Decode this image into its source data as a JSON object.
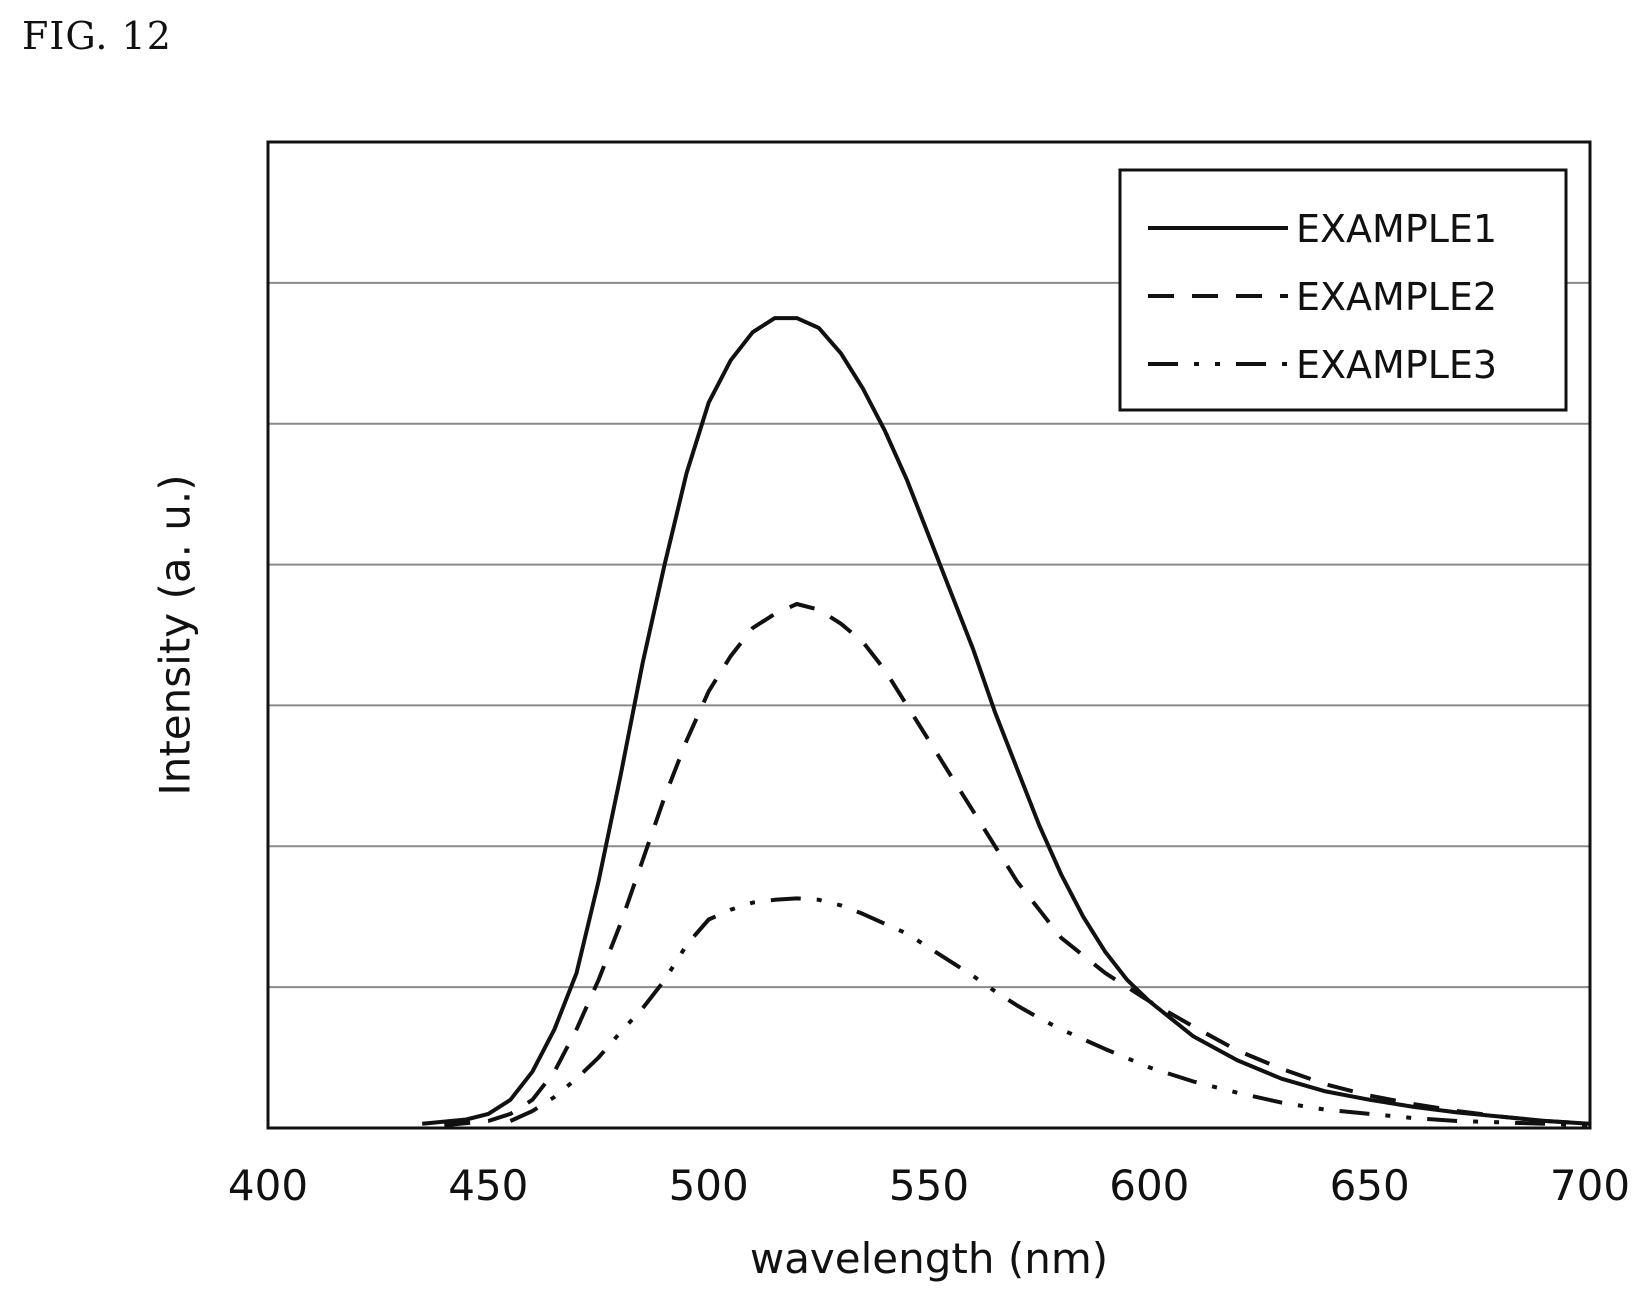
{
  "figure_label": "FIG. 12",
  "chart_data": {
    "type": "line",
    "title": "",
    "xlabel": "wavelength (nm)",
    "ylabel": "Intensity (a. u.)",
    "xlim": [
      400,
      700
    ],
    "ylim": [
      0,
      7
    ],
    "x_ticks": [
      400,
      450,
      500,
      550,
      600,
      650,
      700
    ],
    "y_ticks_labeled": false,
    "grid": "horizontal",
    "legend_position": "top-right",
    "series": [
      {
        "name": "EXAMPLE1",
        "style": "solid",
        "x": [
          435,
          445,
          450,
          455,
          460,
          465,
          470,
          475,
          480,
          485,
          490,
          495,
          500,
          505,
          510,
          515,
          520,
          525,
          530,
          535,
          540,
          545,
          550,
          555,
          560,
          565,
          570,
          575,
          580,
          585,
          590,
          595,
          600,
          610,
          620,
          630,
          640,
          650,
          660,
          670,
          680,
          690,
          700
        ],
        "y": [
          0.03,
          0.06,
          0.1,
          0.2,
          0.4,
          0.7,
          1.1,
          1.75,
          2.5,
          3.3,
          4.0,
          4.65,
          5.15,
          5.45,
          5.65,
          5.75,
          5.75,
          5.68,
          5.5,
          5.25,
          4.95,
          4.6,
          4.2,
          3.8,
          3.4,
          2.95,
          2.55,
          2.15,
          1.8,
          1.5,
          1.25,
          1.05,
          0.9,
          0.65,
          0.48,
          0.35,
          0.26,
          0.2,
          0.15,
          0.11,
          0.08,
          0.05,
          0.03
        ]
      },
      {
        "name": "EXAMPLE2",
        "style": "dashed",
        "x": [
          440,
          450,
          455,
          460,
          465,
          470,
          475,
          480,
          485,
          490,
          495,
          500,
          505,
          510,
          515,
          520,
          525,
          530,
          535,
          540,
          545,
          550,
          555,
          560,
          565,
          570,
          575,
          580,
          590,
          600,
          610,
          620,
          630,
          640,
          650,
          660,
          670,
          680,
          690,
          700
        ],
        "y": [
          0.02,
          0.05,
          0.1,
          0.2,
          0.4,
          0.7,
          1.05,
          1.45,
          1.9,
          2.35,
          2.75,
          3.1,
          3.35,
          3.55,
          3.65,
          3.72,
          3.68,
          3.58,
          3.45,
          3.25,
          3.0,
          2.75,
          2.5,
          2.25,
          2.0,
          1.75,
          1.55,
          1.35,
          1.1,
          0.9,
          0.72,
          0.55,
          0.42,
          0.31,
          0.23,
          0.17,
          0.12,
          0.08,
          0.05,
          0.03
        ]
      },
      {
        "name": "EXAMPLE3",
        "style": "dash-dot-dot",
        "x": [
          455,
          460,
          465,
          470,
          475,
          480,
          485,
          490,
          495,
          500,
          505,
          510,
          515,
          520,
          525,
          530,
          535,
          540,
          545,
          550,
          555,
          560,
          565,
          570,
          575,
          580,
          590,
          600,
          610,
          620,
          630,
          640,
          650,
          660,
          670,
          680,
          690,
          700
        ],
        "y": [
          0.05,
          0.12,
          0.22,
          0.35,
          0.5,
          0.68,
          0.85,
          1.05,
          1.3,
          1.48,
          1.55,
          1.6,
          1.62,
          1.63,
          1.62,
          1.58,
          1.52,
          1.45,
          1.38,
          1.28,
          1.18,
          1.08,
          0.97,
          0.87,
          0.78,
          0.7,
          0.56,
          0.43,
          0.33,
          0.25,
          0.18,
          0.13,
          0.1,
          0.07,
          0.05,
          0.04,
          0.03,
          0.02
        ]
      }
    ]
  }
}
